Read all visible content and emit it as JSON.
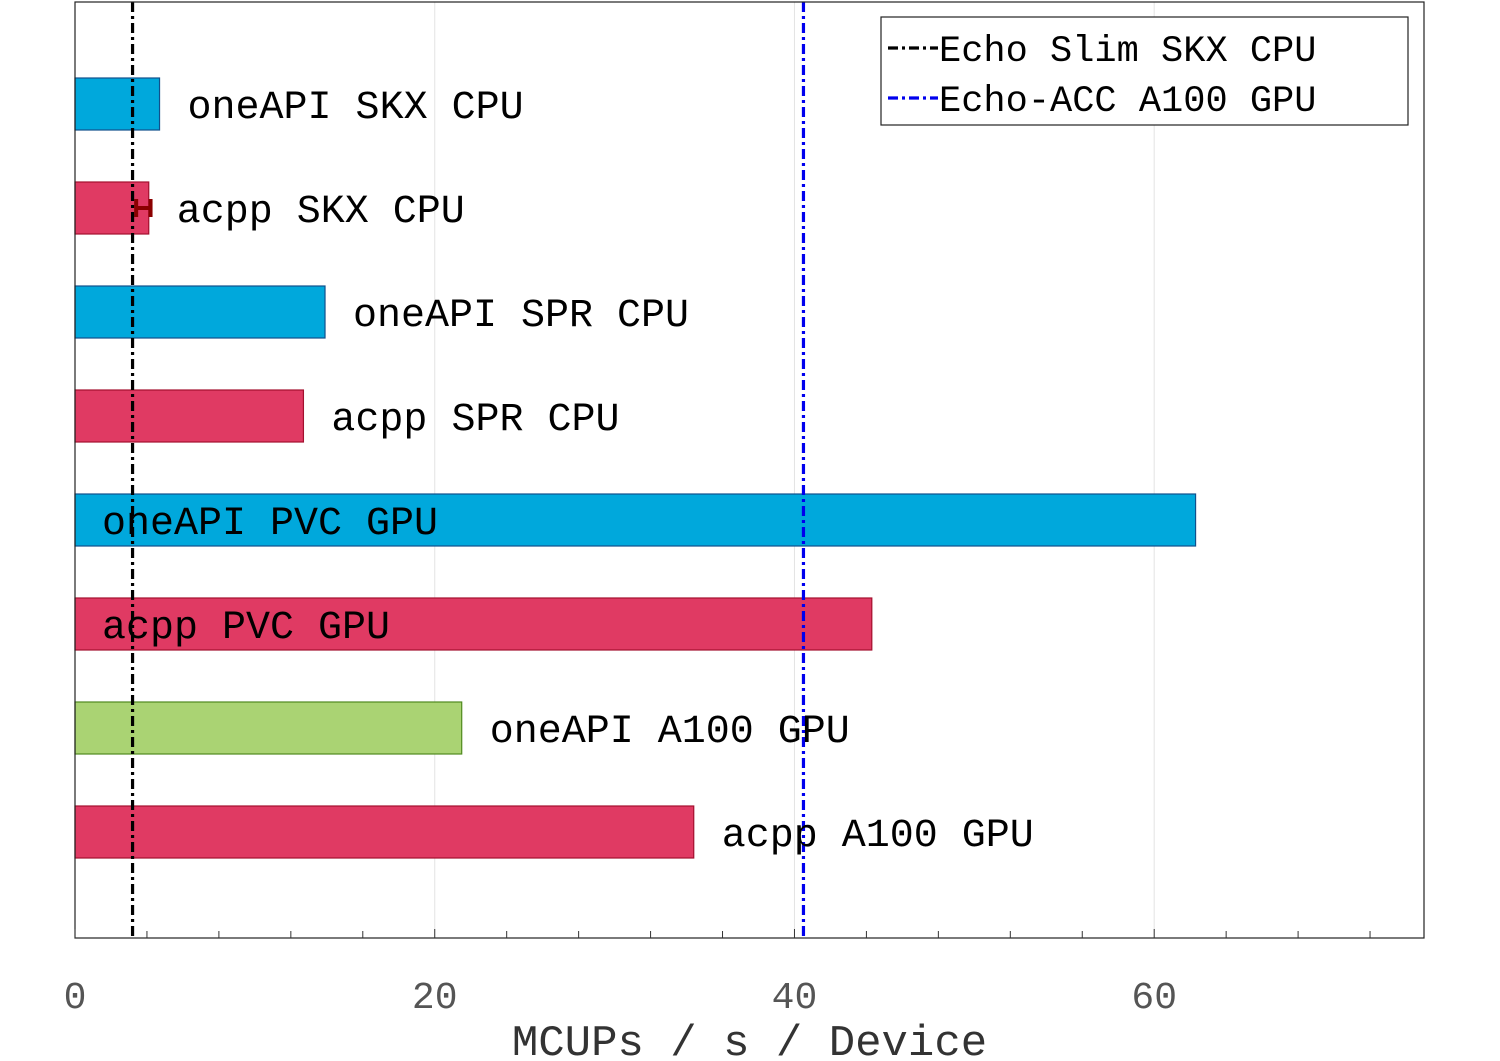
{
  "chart_data": {
    "type": "bar",
    "orientation": "horizontal",
    "title": "",
    "xlabel": "MCUPs / s / Device",
    "ylabel": "",
    "xlim": [
      0,
      75
    ],
    "xticks": [
      0,
      20,
      40,
      60
    ],
    "xtick_labels": [
      "0",
      "20",
      "40",
      "60"
    ],
    "minor_tick_step": 4,
    "grid": "vertical",
    "bars": [
      {
        "label": "oneAPI SKX CPU",
        "value": 4.7,
        "color": "#00a8dc",
        "label_position": "outside"
      },
      {
        "label": "acpp SKX CPU",
        "value": 4.1,
        "color": "#e03a63",
        "label_position": "outside",
        "error": [
          3.4,
          4.2
        ]
      },
      {
        "label": "oneAPI SPR CPU",
        "value": 13.9,
        "color": "#00a8dc",
        "label_position": "outside"
      },
      {
        "label": "acpp SPR CPU",
        "value": 12.7,
        "color": "#e03a63",
        "label_position": "outside"
      },
      {
        "label": "oneAPI PVC GPU",
        "value": 62.3,
        "color": "#00a8dc",
        "label_position": "inside"
      },
      {
        "label": "acpp PVC GPU",
        "value": 44.3,
        "color": "#e03a63",
        "label_position": "inside"
      },
      {
        "label": "oneAPI A100 GPU",
        "value": 21.5,
        "color": "#aad373",
        "label_position": "outside"
      },
      {
        "label": "acpp A100 GPU",
        "value": 34.4,
        "color": "#e03a63",
        "label_position": "outside"
      }
    ],
    "reference_lines": [
      {
        "name": "Echo Slim SKX CPU",
        "value": 3.2,
        "color": "#000000",
        "style": "dash-dot"
      },
      {
        "name": "Echo-ACC A100 GPU",
        "value": 40.5,
        "color": "#0000ee",
        "style": "dash-dot"
      }
    ],
    "legend": {
      "placement": "top-right"
    }
  }
}
